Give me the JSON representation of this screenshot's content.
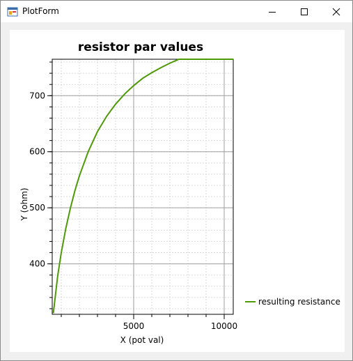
{
  "window": {
    "title": "PlotForm",
    "icon": "form-icon",
    "controls": [
      "minimize-icon",
      "maximize-icon",
      "close-icon"
    ]
  },
  "chart_data": {
    "type": "line",
    "title": "resistor par values",
    "xlabel": "X (pot val)",
    "ylabel": "Y (ohm)",
    "xlim": [
      500,
      10500
    ],
    "ylim": [
      310,
      765
    ],
    "x_ticks": [
      5000,
      10000
    ],
    "y_ticks": [
      400,
      500,
      600,
      700
    ],
    "grid": true,
    "legend_position": "right",
    "series": [
      {
        "name": "resulting resistance",
        "color": "#4e9a06",
        "x": [
          560,
          800,
          1000,
          1250,
          1500,
          1750,
          2000,
          2500,
          3000,
          3500,
          4000,
          4500,
          5000,
          5500,
          6000,
          6500,
          7000,
          7500,
          8000,
          8500,
          9000,
          9500,
          10000,
          10500
        ],
        "y": [
          312,
          378,
          420,
          463,
          499,
          530,
          557,
          601,
          636,
          663,
          685,
          703,
          718,
          731,
          741,
          750,
          758,
          765,
          771,
          776,
          781,
          785,
          788,
          792
        ]
      }
    ]
  }
}
